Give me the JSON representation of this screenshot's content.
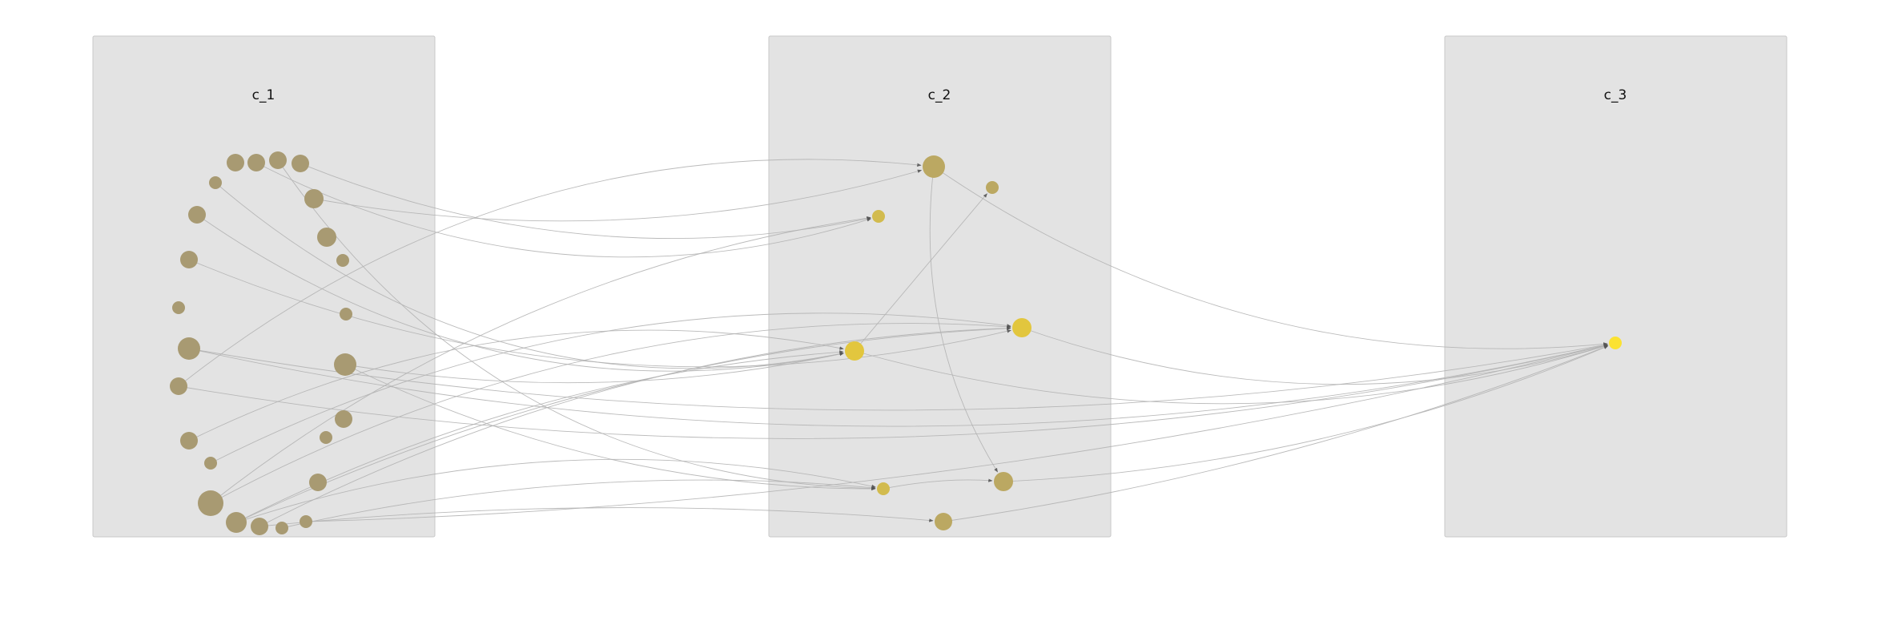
{
  "diagram": {
    "clusters": [
      {
        "id": "c_1",
        "label": "c_1"
      },
      {
        "id": "c_2",
        "label": "c_2"
      },
      {
        "id": "c_3",
        "label": "c_3"
      }
    ],
    "colors": {
      "background": "#ffffff",
      "panel": "#e3e3e3",
      "panel_border": "#c8c8c8",
      "node_c1": "#a89a72",
      "node_c2_dim": "#bba862",
      "node_c2_mid": "#d2bb4e",
      "node_c2_bright": "#e2c63e",
      "node_c3": "#fbe232",
      "edge": "#b3b3b3",
      "arrow": "#555555"
    }
  }
}
